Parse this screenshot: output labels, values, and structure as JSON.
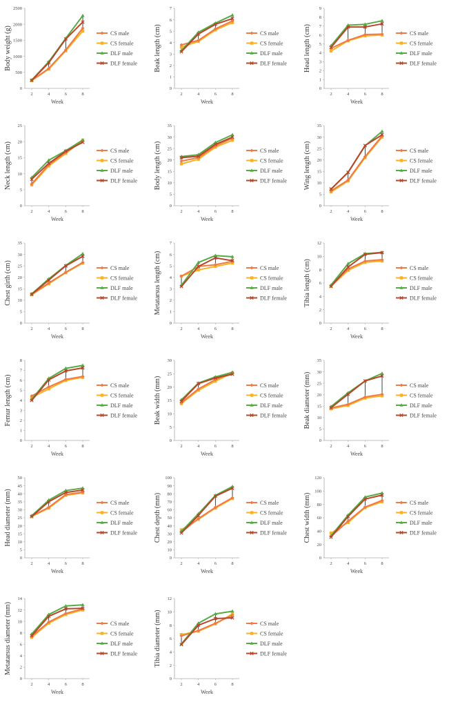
{
  "colors": {
    "CS male": "#ee7b45",
    "CS female": "#f9b122",
    "DLF male": "#55aa44",
    "DLF female": "#b84528",
    "errorbar": "#111111",
    "axis": "#aaaaaa"
  },
  "chart_data": [
    {
      "type": "line",
      "title": "",
      "xlabel": "Week",
      "ylabel": "Body weight (g)",
      "x": [
        2,
        4,
        6,
        8
      ],
      "ylim": [
        0,
        2500
      ],
      "yticks": [
        0,
        500,
        1000,
        1500,
        2000,
        2500
      ],
      "legend": "right",
      "series": [
        {
          "name": "CS male",
          "values": [
            250,
            620,
            1200,
            1880
          ]
        },
        {
          "name": "CS female",
          "values": [
            245,
            600,
            1170,
            1790
          ]
        },
        {
          "name": "DLF male",
          "values": [
            260,
            830,
            1560,
            2270
          ]
        },
        {
          "name": "DLF female",
          "values": [
            250,
            800,
            1540,
            2070
          ]
        }
      ]
    },
    {
      "type": "line",
      "title": "",
      "xlabel": "Week",
      "ylabel": "Beak length (cm)",
      "x": [
        2,
        4,
        6,
        8
      ],
      "ylim": [
        0,
        7
      ],
      "yticks": [
        0,
        1,
        2,
        3,
        4,
        5,
        6,
        7
      ],
      "legend": "right",
      "series": [
        {
          "name": "CS male",
          "values": [
            3.8,
            4.2,
            5.2,
            5.9
          ]
        },
        {
          "name": "CS female",
          "values": [
            3.6,
            4.1,
            5.1,
            5.75
          ]
        },
        {
          "name": "DLF male",
          "values": [
            3.3,
            4.9,
            5.7,
            6.4
          ]
        },
        {
          "name": "DLF female",
          "values": [
            3.2,
            4.75,
            5.6,
            6.1
          ]
        }
      ]
    },
    {
      "type": "line",
      "title": "",
      "xlabel": "Week",
      "ylabel": "Head length (cm)",
      "x": [
        2,
        4,
        6,
        8
      ],
      "ylim": [
        0,
        9
      ],
      "yticks": [
        0,
        1,
        2,
        3,
        4,
        5,
        6,
        7,
        8,
        9
      ],
      "legend": "right",
      "series": [
        {
          "name": "CS male",
          "values": [
            4.5,
            5.4,
            6.05,
            6.1
          ]
        },
        {
          "name": "CS female",
          "values": [
            4.2,
            5.35,
            5.9,
            6.0
          ]
        },
        {
          "name": "DLF male",
          "values": [
            4.8,
            7.1,
            7.2,
            7.6
          ]
        },
        {
          "name": "DLF female",
          "values": [
            4.6,
            6.9,
            6.9,
            7.25
          ]
        }
      ]
    },
    {
      "type": "line",
      "title": "",
      "xlabel": "Week",
      "ylabel": "Neck length (cm)",
      "x": [
        2,
        4,
        6,
        8
      ],
      "ylim": [
        0,
        25
      ],
      "yticks": [
        0,
        5,
        10,
        15,
        20,
        25
      ],
      "legend": "right",
      "series": [
        {
          "name": "CS male",
          "values": [
            6.8,
            12.8,
            16.6,
            20.2
          ]
        },
        {
          "name": "CS female",
          "values": [
            6.5,
            12.4,
            16.3,
            20.5
          ]
        },
        {
          "name": "DLF male",
          "values": [
            8.8,
            14.2,
            17.2,
            20.5
          ]
        },
        {
          "name": "DLF female",
          "values": [
            8.3,
            13.2,
            17.0,
            19.8
          ]
        }
      ]
    },
    {
      "type": "line",
      "title": "",
      "xlabel": "Week",
      "ylabel": "Body length (cm)",
      "x": [
        2,
        4,
        6,
        8
      ],
      "ylim": [
        0,
        35
      ],
      "yticks": [
        0,
        5,
        10,
        15,
        20,
        25,
        30,
        35
      ],
      "legend": "right",
      "series": [
        {
          "name": "CS male",
          "values": [
            19.5,
            21.0,
            26.2,
            29.5
          ]
        },
        {
          "name": "CS female",
          "values": [
            18.3,
            20.3,
            25.6,
            28.6
          ]
        },
        {
          "name": "DLF male",
          "values": [
            21.5,
            22.3,
            27.6,
            31.0
          ]
        },
        {
          "name": "DLF female",
          "values": [
            21.0,
            21.6,
            26.8,
            30.0
          ]
        }
      ]
    },
    {
      "type": "line",
      "title": "",
      "xlabel": "Week",
      "ylabel": "Wing length (cm)",
      "x": [
        2,
        4,
        6,
        8
      ],
      "ylim": [
        0,
        35
      ],
      "yticks": [
        0,
        5,
        10,
        15,
        20,
        25,
        30,
        35
      ],
      "legend": "right",
      "series": [
        {
          "name": "CS male",
          "values": [
            6.5,
            11.2,
            21.5,
            30.5
          ]
        },
        {
          "name": "CS female",
          "values": [
            6.0,
            10.8,
            21.0,
            30.0
          ]
        },
        {
          "name": "DLF male",
          "values": [
            7.2,
            14.5,
            26.2,
            32.5
          ]
        },
        {
          "name": "DLF female",
          "values": [
            7.3,
            14.6,
            26.3,
            31.0
          ]
        }
      ]
    },
    {
      "type": "line",
      "title": "",
      "xlabel": "Week",
      "ylabel": "Chest girth (cm)",
      "x": [
        2,
        4,
        6,
        8
      ],
      "ylim": [
        0,
        35
      ],
      "yticks": [
        0,
        5,
        10,
        15,
        20,
        25,
        30,
        35
      ],
      "legend": "right",
      "series": [
        {
          "name": "CS male",
          "values": [
            12.6,
            17.5,
            22.2,
            26.5
          ]
        },
        {
          "name": "CS female",
          "values": [
            12.4,
            17.2,
            22.0,
            26.2
          ]
        },
        {
          "name": "DLF male",
          "values": [
            12.8,
            19.3,
            25.2,
            30.3
          ]
        },
        {
          "name": "DLF female",
          "values": [
            12.6,
            18.8,
            25.0,
            29.2
          ]
        }
      ]
    },
    {
      "type": "line",
      "title": "",
      "xlabel": "Week",
      "ylabel": "Metatarsus length (cm)",
      "x": [
        2,
        4,
        6,
        8
      ],
      "ylim": [
        0,
        7
      ],
      "yticks": [
        0,
        1,
        2,
        3,
        4,
        5,
        6,
        7
      ],
      "legend": "right",
      "series": [
        {
          "name": "CS male",
          "values": [
            4.1,
            4.95,
            5.1,
            5.4
          ]
        },
        {
          "name": "CS female",
          "values": [
            4.1,
            4.65,
            4.95,
            5.25
          ]
        },
        {
          "name": "DLF male",
          "values": [
            3.3,
            5.3,
            5.9,
            5.8
          ]
        },
        {
          "name": "DLF female",
          "values": [
            3.2,
            4.95,
            5.7,
            5.45
          ]
        }
      ]
    },
    {
      "type": "line",
      "title": "",
      "xlabel": "Week",
      "ylabel": "Tibia length (cm)",
      "x": [
        2,
        4,
        6,
        8
      ],
      "ylim": [
        0,
        12
      ],
      "yticks": [
        0,
        2,
        4,
        6,
        8,
        10,
        12
      ],
      "legend": "right",
      "series": [
        {
          "name": "CS male",
          "values": [
            5.6,
            8.1,
            9.3,
            9.5
          ]
        },
        {
          "name": "CS female",
          "values": [
            5.5,
            7.9,
            9.1,
            9.3
          ]
        },
        {
          "name": "DLF male",
          "values": [
            5.7,
            8.9,
            10.4,
            10.6
          ]
        },
        {
          "name": "DLF female",
          "values": [
            5.5,
            8.4,
            10.3,
            10.55
          ]
        }
      ]
    },
    {
      "type": "line",
      "title": "",
      "xlabel": "Week",
      "ylabel": "Femur length (cm)",
      "x": [
        2,
        4,
        6,
        8
      ],
      "ylim": [
        0,
        8
      ],
      "yticks": [
        0,
        1,
        2,
        3,
        4,
        5,
        6,
        7,
        8
      ],
      "legend": "right",
      "series": [
        {
          "name": "CS male",
          "values": [
            4.45,
            5.35,
            6.1,
            6.4
          ]
        },
        {
          "name": "CS female",
          "values": [
            4.3,
            5.15,
            6.0,
            6.3
          ]
        },
        {
          "name": "DLF male",
          "values": [
            4.1,
            6.2,
            7.2,
            7.5
          ]
        },
        {
          "name": "DLF female",
          "values": [
            4.0,
            6.05,
            6.95,
            7.25
          ]
        }
      ]
    },
    {
      "type": "line",
      "title": "",
      "xlabel": "Week",
      "ylabel": "Beak width (mm)",
      "x": [
        2,
        4,
        6,
        8
      ],
      "ylim": [
        0,
        30
      ],
      "yticks": [
        0,
        5,
        10,
        15,
        20,
        25,
        30
      ],
      "legend": "right",
      "series": [
        {
          "name": "CS male",
          "values": [
            14.2,
            19.3,
            22.8,
            25.5
          ]
        },
        {
          "name": "CS female",
          "values": [
            13.8,
            18.8,
            22.2,
            25.3
          ]
        },
        {
          "name": "DLF male",
          "values": [
            15.2,
            21.5,
            23.8,
            25.5
          ]
        },
        {
          "name": "DLF female",
          "values": [
            14.7,
            21.3,
            23.4,
            24.8
          ]
        }
      ]
    },
    {
      "type": "line",
      "title": "",
      "xlabel": "Week",
      "ylabel": "Beak diameter (mm)",
      "x": [
        2,
        4,
        6,
        8
      ],
      "ylim": [
        0,
        35
      ],
      "yticks": [
        0,
        5,
        10,
        15,
        20,
        25,
        30,
        35
      ],
      "legend": "right",
      "series": [
        {
          "name": "CS male",
          "values": [
            14.2,
            15.8,
            19.0,
            20.2
          ]
        },
        {
          "name": "CS female",
          "values": [
            13.8,
            15.3,
            18.5,
            19.5
          ]
        },
        {
          "name": "DLF male",
          "values": [
            14.8,
            20.8,
            26.0,
            29.3
          ]
        },
        {
          "name": "DLF female",
          "values": [
            14.3,
            20.2,
            26.0,
            28.2
          ]
        }
      ]
    },
    {
      "type": "line",
      "title": "",
      "xlabel": "Week",
      "ylabel": "Head diameter (mm)",
      "x": [
        2,
        4,
        6,
        8
      ],
      "ylim": [
        0,
        50
      ],
      "yticks": [
        0,
        5,
        10,
        15,
        20,
        25,
        30,
        35,
        40,
        45,
        50
      ],
      "legend": "right",
      "series": [
        {
          "name": "CS male",
          "values": [
            26.0,
            31.5,
            39.5,
            41.0
          ]
        },
        {
          "name": "CS female",
          "values": [
            25.8,
            31.0,
            39.0,
            40.5
          ]
        },
        {
          "name": "DLF male",
          "values": [
            26.3,
            36.0,
            42.0,
            43.5
          ]
        },
        {
          "name": "DLF female",
          "values": [
            25.8,
            35.0,
            40.8,
            42.3
          ]
        }
      ]
    },
    {
      "type": "line",
      "title": "",
      "xlabel": "Week",
      "ylabel": "Chest depth (mm)",
      "x": [
        2,
        4,
        6,
        8
      ],
      "ylim": [
        0,
        100
      ],
      "yticks": [
        0,
        10,
        20,
        30,
        40,
        50,
        60,
        70,
        80,
        90,
        100
      ],
      "legend": "right",
      "series": [
        {
          "name": "CS male",
          "values": [
            32,
            49,
            63,
            75
          ]
        },
        {
          "name": "CS female",
          "values": [
            35,
            48,
            62,
            74
          ]
        },
        {
          "name": "DLF male",
          "values": [
            33,
            55,
            78,
            89
          ]
        },
        {
          "name": "DLF female",
          "values": [
            31,
            53,
            77,
            87
          ]
        }
      ]
    },
    {
      "type": "line",
      "title": "",
      "xlabel": "Week",
      "ylabel": "Chest width (mm)",
      "x": [
        2,
        4,
        6,
        8
      ],
      "ylim": [
        0,
        120
      ],
      "yticks": [
        0,
        20,
        40,
        60,
        80,
        100,
        120
      ],
      "legend": "right",
      "series": [
        {
          "name": "CS male",
          "values": [
            32,
            55,
            76,
            86
          ]
        },
        {
          "name": "CS female",
          "values": [
            37,
            53,
            75,
            84
          ]
        },
        {
          "name": "DLF male",
          "values": [
            33,
            64,
            91,
            97
          ]
        },
        {
          "name": "DLF female",
          "values": [
            31,
            62,
            88,
            94
          ]
        }
      ]
    },
    {
      "type": "line",
      "title": "",
      "xlabel": "Week",
      "ylabel": "Metatarsus diameter (mm)",
      "x": [
        2,
        4,
        6,
        8
      ],
      "ylim": [
        0,
        14
      ],
      "yticks": [
        0,
        2,
        4,
        6,
        8,
        10,
        12,
        14
      ],
      "legend": "right",
      "series": [
        {
          "name": "CS male",
          "values": [
            7.4,
            9.9,
            11.4,
            12.2
          ]
        },
        {
          "name": "CS female",
          "values": [
            7.2,
            9.7,
            11.2,
            12.0
          ]
        },
        {
          "name": "DLF male",
          "values": [
            7.8,
            11.2,
            12.7,
            12.9
          ]
        },
        {
          "name": "DLF female",
          "values": [
            7.5,
            10.9,
            12.2,
            12.3
          ]
        }
      ]
    },
    {
      "type": "line",
      "title": "",
      "xlabel": "Week",
      "ylabel": "Tibia diameter (mm)",
      "x": [
        2,
        4,
        6,
        8
      ],
      "ylim": [
        0,
        12
      ],
      "yticks": [
        0,
        2,
        4,
        6,
        8,
        10,
        12
      ],
      "legend": "right",
      "series": [
        {
          "name": "CS male",
          "values": [
            6.4,
            7.2,
            8.3,
            9.5
          ]
        },
        {
          "name": "CS female",
          "values": [
            6.6,
            7.1,
            8.2,
            9.7
          ]
        },
        {
          "name": "DLF male",
          "values": [
            5.2,
            8.3,
            9.7,
            10.1
          ]
        },
        {
          "name": "DLF female",
          "values": [
            5.1,
            8.0,
            9.0,
            9.1
          ]
        }
      ]
    }
  ]
}
